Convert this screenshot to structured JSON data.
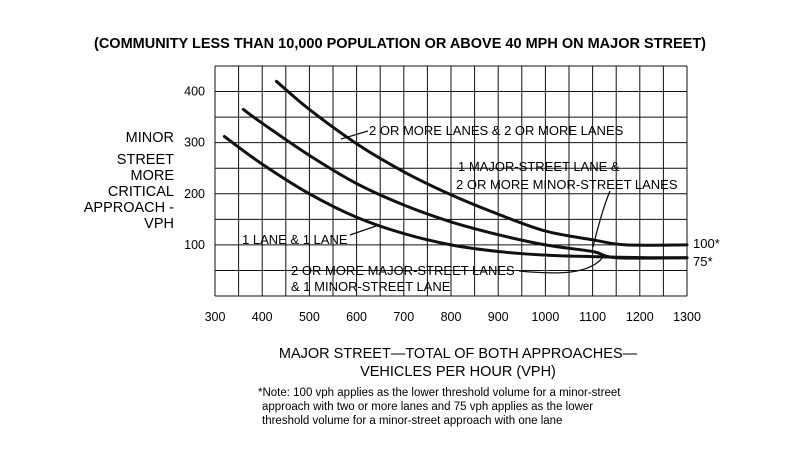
{
  "chart_data": {
    "type": "line",
    "title": "(COMMUNITY LESS THAN 10,000 POPULATION OR ABOVE 40 MPH ON MAJOR STREET)",
    "ylabel_lines": [
      "MINOR",
      "STREET",
      "MORE",
      "CRITICAL",
      "APPROACH -",
      "VPH"
    ],
    "xlabel_lines": [
      "MAJOR STREET—TOTAL OF BOTH APPROACHES—",
      "VEHICLES PER HOUR (VPH)"
    ],
    "xlim": [
      300,
      1300
    ],
    "ylim": [
      0,
      450
    ],
    "xticks": [
      300,
      400,
      500,
      600,
      700,
      800,
      900,
      1000,
      1100,
      1200,
      1300
    ],
    "yticks": [
      100,
      200,
      300,
      400
    ],
    "grid": true,
    "series": [
      {
        "name": "2 OR MORE LANES & 2 OR MORE LANES",
        "x": [
          430,
          500,
          600,
          700,
          800,
          900,
          1000,
          1100,
          1170,
          1300
        ],
        "y": [
          420,
          365,
          298,
          243,
          198,
          160,
          127,
          110,
          100,
          100
        ]
      },
      {
        "name": "1 MAJOR-STREET LANE & 2 OR MORE MINOR-STREET LANES",
        "x": [
          360,
          400,
          500,
          600,
          700,
          800,
          900,
          1000,
          1100,
          1150,
          1300
        ],
        "y": [
          365,
          338,
          275,
          220,
          178,
          145,
          120,
          100,
          87,
          75,
          75
        ]
      },
      {
        "name": "2 OR MORE MAJOR-STREET LANES & 1 MINOR-STREET LANE",
        "x": [
          320,
          400,
          500,
          600,
          700,
          800,
          900,
          1000,
          1100,
          1220,
          1300
        ],
        "y": [
          312,
          258,
          200,
          154,
          122,
          100,
          87,
          80,
          77,
          75,
          75
        ]
      }
    ],
    "curve_labels": [
      "2 OR MORE LANES & 2 OR MORE LANES",
      "1 MAJOR-STREET LANE &",
      "2 OR MORE MINOR-STREET LANES",
      "1 LANE & 1 LANE",
      "2 OR MORE MAJOR-STREET LANES",
      "& 1 MINOR-STREET LANE"
    ],
    "threshold_labels": [
      "100*",
      "75*"
    ],
    "note_lines": [
      "*Note: 100 vph applies as the lower threshold volume for a minor-street",
      "approach with two or more lanes and 75 vph applies as the lower",
      "threshold volume for a minor-street approach with one lane"
    ]
  }
}
